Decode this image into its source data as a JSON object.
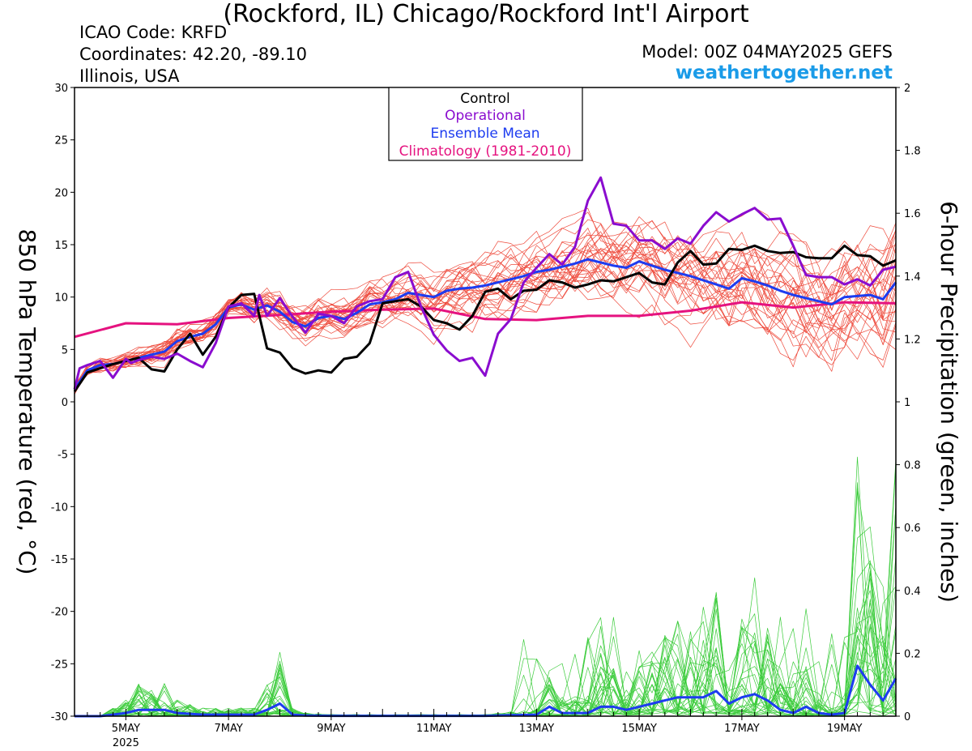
{
  "header": {
    "title": "(Rockford, IL) Chicago/Rockford Int'l Airport",
    "icao": "ICAO Code: KRFD",
    "coordinates": "Coordinates: 42.20, -89.10",
    "region": "Illinois, USA",
    "model": "Model: 00Z 04MAY2025 GEFS",
    "brand": "weathertogether.net"
  },
  "colors": {
    "members_temp": "#ee4a3c",
    "members_precip": "#3ccc3c",
    "control": "#000000",
    "operational": "#8a0ccf",
    "ensemble_mean": "#1d3cf0",
    "climatology": "#e5127f",
    "brand": "#1a9be8"
  },
  "chart_data": {
    "type": "line",
    "x_unit": "day of May 2025 (00Z)",
    "xlim": [
      4,
      20
    ],
    "x_ticks": [
      {
        "x": 5,
        "label": "5MAY",
        "sub": "2025"
      },
      {
        "x": 7,
        "label": "7MAY",
        "sub": ""
      },
      {
        "x": 9,
        "label": "9MAY",
        "sub": ""
      },
      {
        "x": 11,
        "label": "11MAY",
        "sub": ""
      },
      {
        "x": 13,
        "label": "13MAY",
        "sub": ""
      },
      {
        "x": 15,
        "label": "15MAY",
        "sub": ""
      },
      {
        "x": 17,
        "label": "17MAY",
        "sub": ""
      },
      {
        "x": 19,
        "label": "19MAY",
        "sub": ""
      }
    ],
    "ylabel": "850 hPa Temperature (red, °C)",
    "ylim": [
      -30,
      30
    ],
    "y_ticks": [
      -30,
      -25,
      -20,
      -15,
      -10,
      -5,
      0,
      5,
      10,
      15,
      20,
      25,
      30
    ],
    "y2label": "6-hour Precipitation (green, inches)",
    "y2lim": [
      0,
      2
    ],
    "y2_ticks": [
      "0",
      "0.2",
      "0.4",
      "0.6",
      "0.8",
      "1",
      "1.2",
      "1.4",
      "1.6",
      "1.8",
      "2"
    ],
    "legend": {
      "placement": "top-center",
      "entries": [
        {
          "name": "Control",
          "color": "#000000"
        },
        {
          "name": "Operational",
          "color": "#8a0ccf"
        },
        {
          "name": "Ensemble Mean",
          "color": "#1d3cf0"
        },
        {
          "name": "Climatology (1981-2010)",
          "color": "#e5127f"
        }
      ]
    },
    "series": [
      {
        "name": "Climatology (1981-2010)",
        "axis": "left",
        "x": [
          4,
          5,
          6,
          7,
          8,
          9,
          10,
          11,
          12,
          13,
          14,
          15,
          16,
          17,
          18,
          19,
          20
        ],
        "values": [
          6.2,
          7.5,
          7.4,
          8.0,
          8.3,
          8.6,
          8.8,
          8.9,
          7.9,
          7.8,
          8.2,
          8.2,
          8.7,
          9.5,
          9.0,
          9.5,
          9.4
        ]
      },
      {
        "name": "Ensemble Mean",
        "axis": "left",
        "x": [
          4,
          4.25,
          4.5,
          4.75,
          5,
          5.25,
          5.5,
          5.75,
          6,
          6.25,
          6.5,
          6.75,
          7,
          7.25,
          7.5,
          7.75,
          8,
          8.25,
          8.5,
          8.75,
          9,
          9.25,
          9.5,
          9.75,
          10,
          10.25,
          10.5,
          10.75,
          11,
          11.25,
          11.5,
          11.75,
          12,
          12.25,
          12.5,
          12.75,
          13,
          13.25,
          13.5,
          13.75,
          14,
          14.25,
          14.5,
          14.75,
          15,
          15.25,
          15.5,
          15.75,
          16,
          16.25,
          16.5,
          16.75,
          17,
          17.25,
          17.5,
          17.75,
          18,
          18.25,
          18.5,
          18.75,
          19,
          19.25,
          19.5,
          19.75,
          20
        ],
        "values": [
          1.2,
          3,
          3.5,
          3.6,
          3.9,
          4.2,
          4.5,
          4.8,
          5.8,
          6.2,
          6.5,
          7.4,
          9,
          9.3,
          8.8,
          9.2,
          8.6,
          7.6,
          7.2,
          8,
          8.2,
          7.9,
          8.5,
          9.3,
          9.5,
          9.8,
          10.4,
          10.2,
          10,
          10.6,
          10.8,
          10.9,
          11.1,
          11.4,
          11.7,
          12,
          12.4,
          12.6,
          12.9,
          13.2,
          13.6,
          13.3,
          13,
          12.8,
          13.4,
          13,
          12.6,
          12.3,
          12,
          11.6,
          11.2,
          10.8,
          11.8,
          11.5,
          11.1,
          10.6,
          10.2,
          9.9,
          9.6,
          9.3,
          10,
          10.1,
          10.2,
          9.8,
          11.4
        ]
      },
      {
        "name": "Control",
        "axis": "left",
        "x": [
          4,
          4.25,
          4.5,
          4.75,
          5,
          5.25,
          5.5,
          5.75,
          6,
          6.25,
          6.5,
          6.75,
          7,
          7.25,
          7.5,
          7.75,
          8,
          8.25,
          8.5,
          8.75,
          9,
          9.25,
          9.5,
          9.75,
          10,
          10.25,
          10.5,
          10.75,
          11,
          11.25,
          11.5,
          11.75,
          12,
          12.25,
          12.5,
          12.75,
          13,
          13.25,
          13.5,
          13.75,
          14,
          14.25,
          14.5,
          14.75,
          15,
          15.25,
          15.5,
          15.75,
          16,
          16.25,
          16.5,
          16.75,
          17,
          17.25,
          17.5,
          17.75,
          18,
          18.25,
          18.5,
          18.75,
          19,
          19.25,
          19.5,
          19.75,
          20
        ],
        "values": [
          1,
          2.8,
          3.2,
          3.6,
          3.9,
          4.2,
          3.1,
          2.9,
          5,
          6.5,
          4.5,
          6.2,
          9,
          10.2,
          10.3,
          5.1,
          4.7,
          3.2,
          2.7,
          3,
          2.8,
          4.1,
          4.3,
          5.6,
          9.4,
          9.6,
          9.8,
          9.1,
          7.8,
          7.5,
          6.9,
          8.2,
          10.5,
          10.8,
          9.8,
          10.6,
          10.7,
          11.6,
          11.4,
          10.9,
          11.2,
          11.6,
          11.5,
          11.9,
          12.3,
          11.4,
          11.2,
          13.3,
          14.4,
          13.1,
          13.2,
          14.6,
          14.5,
          14.9,
          14.4,
          14.2,
          14.3,
          13.8,
          13.7,
          13.7,
          14.9,
          14,
          13.9,
          13,
          13.5
        ]
      },
      {
        "name": "Operational",
        "axis": "left",
        "x": [
          4,
          4.1,
          4.25,
          4.5,
          4.75,
          5,
          5.1,
          5.25,
          5.5,
          5.75,
          6,
          6.25,
          6.5,
          6.75,
          7,
          7.25,
          7.5,
          7.6,
          7.75,
          8,
          8.25,
          8.5,
          8.75,
          9,
          9.25,
          9.5,
          9.75,
          10,
          10.25,
          10.5,
          10.75,
          11,
          11.25,
          11.5,
          11.75,
          12,
          12.1,
          12.25,
          12.5,
          12.75,
          13,
          13.25,
          13.5,
          13.75,
          14,
          14.25,
          14.5,
          14.75,
          15,
          15.25,
          15.5,
          15.75,
          16,
          16.25,
          16.5,
          16.75,
          17,
          17.25,
          17.5,
          17.75,
          18,
          18.25,
          18.5,
          18.75,
          19,
          19.25,
          19.5,
          19.75,
          20
        ],
        "values": [
          1.2,
          3.2,
          3.5,
          3.9,
          2.3,
          4.1,
          3.7,
          4,
          4.3,
          4.1,
          4.6,
          3.9,
          3.3,
          5.6,
          9.1,
          9.4,
          8.2,
          10.2,
          8.2,
          9.9,
          8.1,
          6.6,
          8.4,
          8.2,
          7.5,
          9.1,
          9.6,
          9.8,
          11.9,
          12.4,
          9.1,
          6.4,
          4.9,
          3.9,
          4.2,
          2.5,
          4.1,
          6.5,
          7.9,
          11.4,
          12.8,
          14.1,
          13.1,
          14.8,
          19.2,
          21.4,
          17,
          16.8,
          15.4,
          15.4,
          14.6,
          15.6,
          15.1,
          16.8,
          18.1,
          17.2,
          17.9,
          18.5,
          17.4,
          17.5,
          14.9,
          12.1,
          11.9,
          11.9,
          11.2,
          11.7,
          11.1,
          12.6,
          12.9
        ]
      },
      {
        "name": "Ensemble Mean (precip)",
        "axis": "right",
        "x": [
          4,
          4.5,
          5,
          5.25,
          5.5,
          5.75,
          6,
          6.5,
          7,
          7.5,
          7.75,
          8,
          8.25,
          8.5,
          9,
          10,
          11,
          12,
          12.5,
          13,
          13.25,
          13.5,
          14,
          14.25,
          14.5,
          14.75,
          15,
          15.25,
          15.5,
          15.75,
          16,
          16.25,
          16.5,
          16.75,
          17,
          17.25,
          17.5,
          17.75,
          18,
          18.25,
          18.5,
          18.75,
          19,
          19.25,
          19.5,
          19.75,
          20
        ],
        "values": [
          0,
          0,
          0.01,
          0.02,
          0.02,
          0.02,
          0.01,
          0.005,
          0.005,
          0.005,
          0.02,
          0.04,
          0.005,
          0.002,
          0.001,
          0.001,
          0.001,
          0.001,
          0.003,
          0.005,
          0.03,
          0.01,
          0.01,
          0.03,
          0.03,
          0.02,
          0.03,
          0.04,
          0.05,
          0.06,
          0.06,
          0.06,
          0.08,
          0.04,
          0.06,
          0.07,
          0.05,
          0.02,
          0.01,
          0.03,
          0.01,
          0.005,
          0.01,
          0.16,
          0.1,
          0.05,
          0.12
        ]
      }
    ]
  }
}
